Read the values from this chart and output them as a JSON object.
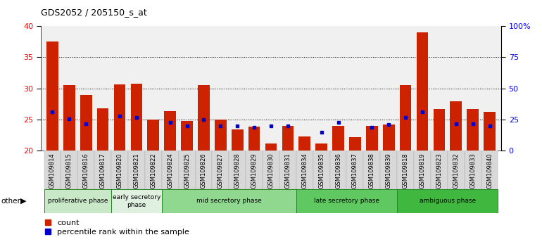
{
  "title": "GDS2052 / 205150_s_at",
  "samples": [
    "GSM109814",
    "GSM109815",
    "GSM109816",
    "GSM109817",
    "GSM109820",
    "GSM109821",
    "GSM109822",
    "GSM109824",
    "GSM109825",
    "GSM109826",
    "GSM109827",
    "GSM109828",
    "GSM109829",
    "GSM109830",
    "GSM109831",
    "GSM109834",
    "GSM109835",
    "GSM109836",
    "GSM109837",
    "GSM109838",
    "GSM109839",
    "GSM109818",
    "GSM109819",
    "GSM109823",
    "GSM109832",
    "GSM109833",
    "GSM109840"
  ],
  "red_values": [
    37.5,
    30.5,
    28.9,
    26.8,
    30.6,
    30.7,
    25.0,
    26.4,
    24.8,
    30.5,
    25.0,
    23.4,
    23.9,
    21.2,
    24.0,
    22.3,
    21.2,
    24.0,
    22.2,
    24.0,
    24.2,
    30.5,
    39.0,
    26.7,
    27.9,
    26.7,
    26.2
  ],
  "blue_values": [
    26.2,
    25.1,
    24.3,
    null,
    25.5,
    25.3,
    null,
    24.5,
    24.0,
    25.0,
    24.0,
    24.0,
    23.8,
    24.0,
    24.0,
    null,
    23.0,
    24.5,
    null,
    23.8,
    24.2,
    25.3,
    26.2,
    null,
    24.3,
    24.3,
    24.0
  ],
  "ylim_left": [
    20,
    40
  ],
  "ylim_right": [
    0,
    100
  ],
  "yticks_left": [
    20,
    25,
    30,
    35,
    40
  ],
  "yticks_right": [
    0,
    25,
    50,
    75,
    100
  ],
  "ytick_labels_right": [
    "0",
    "25",
    "50",
    "75",
    "100%"
  ],
  "phases": [
    {
      "label": "proliferative phase",
      "start": 0,
      "end": 4,
      "color": "#c8e8c8"
    },
    {
      "label": "early secretory\nphase",
      "start": 4,
      "end": 7,
      "color": "#e0f0e0"
    },
    {
      "label": "mid secretory phase",
      "start": 7,
      "end": 15,
      "color": "#90d890"
    },
    {
      "label": "late secretory phase",
      "start": 15,
      "end": 21,
      "color": "#60c860"
    },
    {
      "label": "ambiguous phase",
      "start": 21,
      "end": 27,
      "color": "#40b840"
    }
  ],
  "bar_color": "#cc2200",
  "dot_color": "#0000cc",
  "legend_labels": [
    "count",
    "percentile rank within the sample"
  ],
  "grid_dotted_at": [
    25,
    30,
    35
  ]
}
